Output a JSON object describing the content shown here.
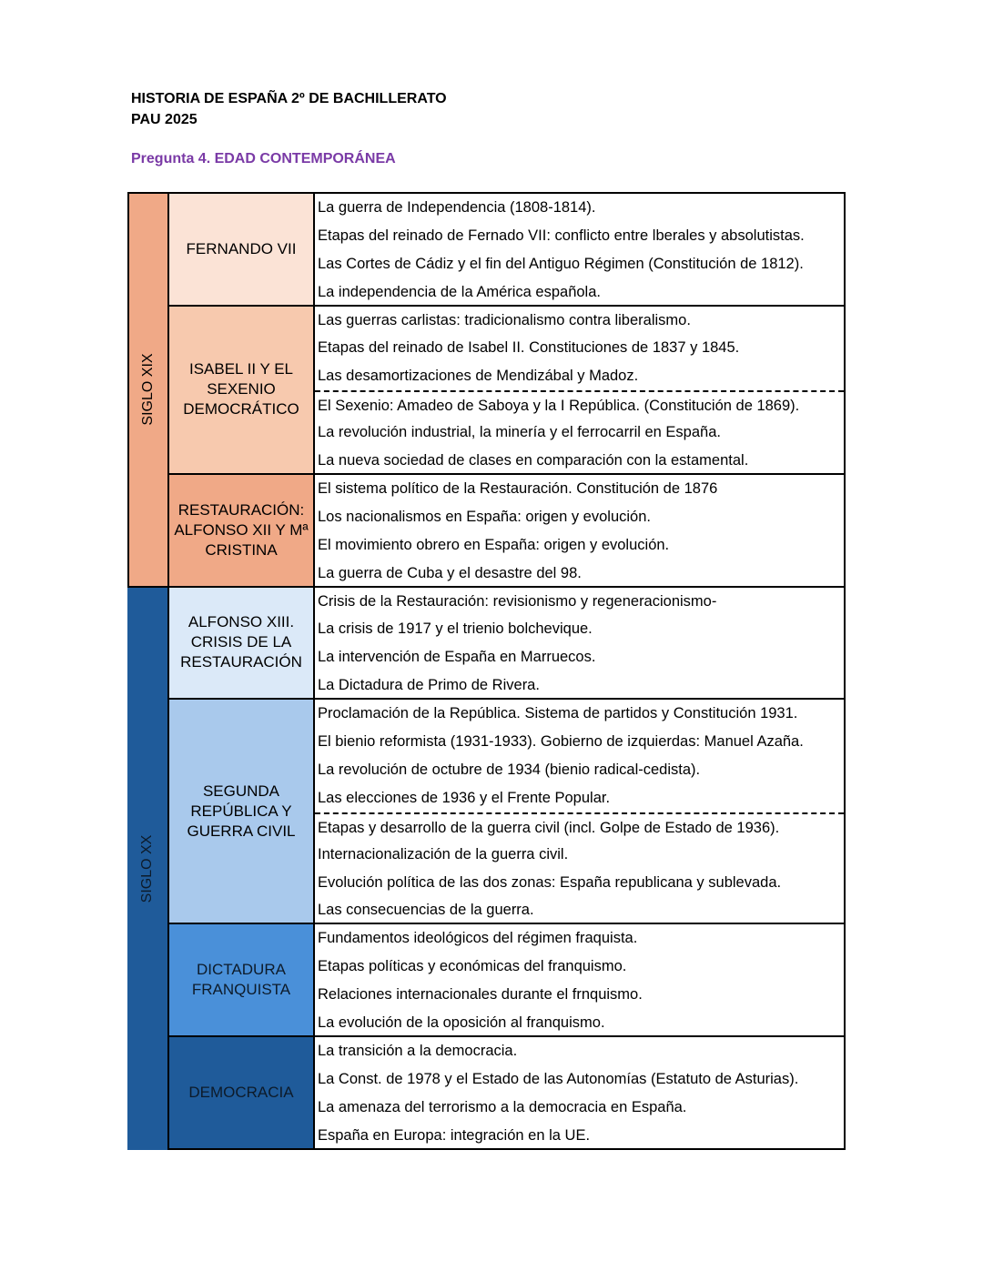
{
  "header": {
    "line1": "HISTORIA DE ESPAÑA 2º DE BACHILLERATO",
    "line2": "PAU 2025",
    "question": "Pregunta 4. EDAD CONTEMPORÁNEA"
  },
  "centuries": [
    {
      "label": "SIGLO XIX",
      "color": "#f0a987"
    },
    {
      "label": "SIGLO XX",
      "color": "#1f5b9a"
    }
  ],
  "periods": [
    {
      "label": "FERNANDO VII",
      "color": "#fbe3d6",
      "topics": [
        "La guerra de Independencia (1808-1814).",
        "Etapas del reinado de Fernado VII: conflicto entre lberales y absolutistas.",
        "Las Cortes de Cádiz y el fin del Antiguo Régimen (Constitución de 1812).",
        "La independencia de la América española."
      ]
    },
    {
      "label": "ISABEL II Y EL SEXENIO DEMOCRÁTICO",
      "color": "#f7c9ae",
      "dash_after": 3,
      "topics": [
        "Las guerras carlistas: tradicionalismo contra liberalismo.",
        "Etapas del reinado de Isabel II. Constituciones de 1837 y 1845.",
        "Las desamortizaciones de Mendizábal y Madoz.",
        "El Sexenio: Amadeo de Saboya y la I República. (Constitución de 1869).",
        "La revolución industrial, la minería y el ferrocarril en España.",
        "La nueva sociedad de clases en comparación con la estamental."
      ]
    },
    {
      "label": "RESTAURACIÓN: ALFONSO XII Y Mª CRISTINA",
      "color": "#f0a987",
      "topics": [
        "El sistema político de la Restauración. Constitución de 1876",
        "Los nacionalismos en España: origen y evolución.",
        "El movimiento obrero en España: origen y evolución.",
        "La guerra de Cuba y el desastre del 98."
      ]
    },
    {
      "label": "ALFONSO XIII. CRISIS DE LA RESTAURACIÓN",
      "color": "#dbe9f8",
      "topics": [
        "Crisis de la Restauración: revisionismo y regeneracionismo-",
        "La crisis de 1917 y el trienio bolchevique.",
        "La intervención de España en Marruecos.",
        "La Dictadura de Primo de Rivera."
      ]
    },
    {
      "label": "SEGUNDA REPÚBLICA Y GUERRA CIVIL",
      "color": "#a9c9ec",
      "dash_after": 4,
      "topics": [
        "Proclamación de la República. Sistema de partidos y Constitución 1931.",
        "El bienio reformista (1931-1933). Gobierno de izquierdas: Manuel Azaña.",
        "La revolución de octubre de 1934 (bienio radical-cedista).",
        "Las elecciones de 1936 y el Frente Popular.",
        "Etapas y desarrollo de la guerra civil (incl. Golpe de Estado de 1936).",
        "Internacionalización de la guerra civil.",
        "Evolución política de las dos zonas: España republicana y sublevada.",
        "Las consecuencias de la guerra."
      ]
    },
    {
      "label": "DICTADURA FRANQUISTA",
      "color": "#4a90d9",
      "topics": [
        "Fundamentos ideológicos del régimen fraquista.",
        "Etapas políticas y económicas del franquismo.",
        "Relaciones internacionales durante el frnquismo.",
        "La evolución de la oposición al franquismo."
      ]
    },
    {
      "label": "DEMOCRACIA",
      "color": "#1f5b9a",
      "topics": [
        "La transición a la democracia.",
        "La Const. de 1978 y el Estado de las Autonomías (Estatuto de Asturias).",
        "La amenaza del terrorismo a la democracia en España.",
        "España en Europa: integración en la UE."
      ]
    }
  ]
}
